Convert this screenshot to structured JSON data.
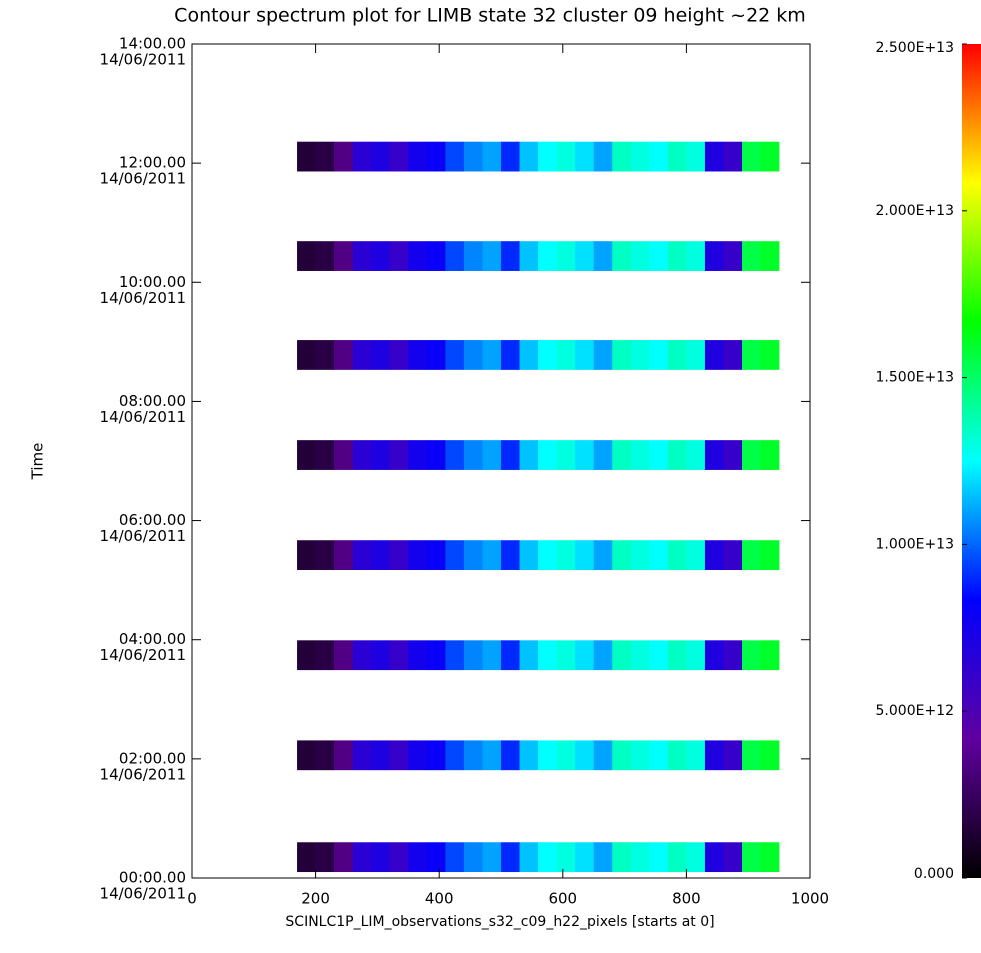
{
  "chart_data": {
    "type": "heatmap",
    "title": "Contour spectrum plot for LIMB state 32 cluster 09 height ~22 km",
    "xlabel": "SCINLC1P_LIM_observations_s32_c09_h22_pixels [starts at 0]",
    "ylabel": "Time",
    "xlim": [
      0,
      1000
    ],
    "xticks": [
      0,
      200,
      400,
      600,
      800,
      1000
    ],
    "ylim": [
      0,
      14
    ],
    "yticks": [
      {
        "value": 0,
        "label": [
          "00:00.00",
          "14/06/2011"
        ]
      },
      {
        "value": 2,
        "label": [
          "02:00.00",
          "14/06/2011"
        ]
      },
      {
        "value": 4,
        "label": [
          "04:00.00",
          "14/06/2011"
        ]
      },
      {
        "value": 6,
        "label": [
          "06:00.00",
          "14/06/2011"
        ]
      },
      {
        "value": 8,
        "label": [
          "08:00.00",
          "14/06/2011"
        ]
      },
      {
        "value": 10,
        "label": [
          "10:00.00",
          "14/06/2011"
        ]
      },
      {
        "value": 12,
        "label": [
          "12:00.00",
          "14/06/2011"
        ]
      },
      {
        "value": 14,
        "label": [
          "14:00.00",
          "14/06/2011"
        ]
      }
    ],
    "clim": [
      0,
      25000000000000.0
    ],
    "cticks": [
      {
        "value": 0,
        "label": "0.000"
      },
      {
        "value": 5000000000000.0,
        "label": "5.000E+12"
      },
      {
        "value": 10000000000000.0,
        "label": "1.000E+13"
      },
      {
        "value": 15000000000000.0,
        "label": "1.500E+13"
      },
      {
        "value": 20000000000000.0,
        "label": "2.000E+13"
      },
      {
        "value": 25000000000000.0,
        "label": "2.500E+13"
      }
    ],
    "colormap": [
      "#000000",
      "#6000a0",
      "#0000ff",
      "#00ffff",
      "#00ff00",
      "#ffff00",
      "#ff0000"
    ],
    "x_edges": [
      170,
      200,
      230,
      260,
      290,
      320,
      350,
      380,
      410,
      440,
      470,
      500,
      530,
      560,
      590,
      620,
      650,
      680,
      710,
      740,
      770,
      800,
      830,
      860,
      890,
      920,
      950
    ],
    "rows": [
      {
        "y_edges": [
          0.1,
          0.6
        ],
        "values": [
          1500000000000.0,
          1800000000000.0,
          3500000000000.0,
          6500000000000.0,
          7000000000000.0,
          6000000000000.0,
          7500000000000.0,
          8000000000000.0,
          9500000000000.0,
          10500000000000.0,
          11000000000000.0,
          9000000000000.0,
          11500000000000.0,
          12500000000000.0,
          13000000000000.0,
          12000000000000.0,
          11000000000000.0,
          13500000000000.0,
          13000000000000.0,
          12500000000000.0,
          13500000000000.0,
          13000000000000.0,
          7000000000000.0,
          6000000000000.0,
          15500000000000.0,
          16000000000000.0
        ]
      },
      {
        "y_edges": [
          1.81,
          2.31
        ],
        "values": [
          1500000000000.0,
          1800000000000.0,
          3500000000000.0,
          6500000000000.0,
          7000000000000.0,
          6000000000000.0,
          7500000000000.0,
          8000000000000.0,
          9500000000000.0,
          10500000000000.0,
          11000000000000.0,
          9000000000000.0,
          11500000000000.0,
          12500000000000.0,
          13000000000000.0,
          12000000000000.0,
          11000000000000.0,
          13500000000000.0,
          13000000000000.0,
          12500000000000.0,
          13500000000000.0,
          13000000000000.0,
          7000000000000.0,
          6000000000000.0,
          15500000000000.0,
          16000000000000.0
        ]
      },
      {
        "y_edges": [
          3.49,
          3.99
        ],
        "values": [
          1500000000000.0,
          1800000000000.0,
          3500000000000.0,
          6500000000000.0,
          7000000000000.0,
          6000000000000.0,
          7500000000000.0,
          8000000000000.0,
          9500000000000.0,
          10500000000000.0,
          11000000000000.0,
          9000000000000.0,
          11500000000000.0,
          12500000000000.0,
          13000000000000.0,
          12000000000000.0,
          11000000000000.0,
          13500000000000.0,
          13000000000000.0,
          12500000000000.0,
          13500000000000.0,
          13000000000000.0,
          7000000000000.0,
          6000000000000.0,
          15500000000000.0,
          16000000000000.0
        ]
      },
      {
        "y_edges": [
          5.17,
          5.67
        ],
        "values": [
          1500000000000.0,
          1800000000000.0,
          3500000000000.0,
          6500000000000.0,
          7000000000000.0,
          6000000000000.0,
          7500000000000.0,
          8000000000000.0,
          9500000000000.0,
          10500000000000.0,
          11000000000000.0,
          9000000000000.0,
          11500000000000.0,
          12500000000000.0,
          13000000000000.0,
          12000000000000.0,
          11000000000000.0,
          13500000000000.0,
          13000000000000.0,
          12500000000000.0,
          13500000000000.0,
          13000000000000.0,
          7000000000000.0,
          6000000000000.0,
          15500000000000.0,
          16000000000000.0
        ]
      },
      {
        "y_edges": [
          6.85,
          7.35
        ],
        "values": [
          1500000000000.0,
          1800000000000.0,
          3500000000000.0,
          6500000000000.0,
          7000000000000.0,
          6000000000000.0,
          7500000000000.0,
          8000000000000.0,
          9500000000000.0,
          10500000000000.0,
          11000000000000.0,
          9000000000000.0,
          11500000000000.0,
          12500000000000.0,
          13000000000000.0,
          12000000000000.0,
          11000000000000.0,
          13500000000000.0,
          13000000000000.0,
          12500000000000.0,
          13500000000000.0,
          13000000000000.0,
          7000000000000.0,
          6000000000000.0,
          15500000000000.0,
          16000000000000.0
        ]
      },
      {
        "y_edges": [
          8.53,
          9.03
        ],
        "values": [
          1500000000000.0,
          1800000000000.0,
          3500000000000.0,
          6500000000000.0,
          7000000000000.0,
          6000000000000.0,
          7500000000000.0,
          8000000000000.0,
          9500000000000.0,
          10500000000000.0,
          11000000000000.0,
          9000000000000.0,
          11500000000000.0,
          12500000000000.0,
          13000000000000.0,
          12000000000000.0,
          11000000000000.0,
          13500000000000.0,
          13000000000000.0,
          12500000000000.0,
          13500000000000.0,
          13000000000000.0,
          7000000000000.0,
          6000000000000.0,
          15500000000000.0,
          16000000000000.0
        ]
      },
      {
        "y_edges": [
          10.19,
          10.69
        ],
        "values": [
          1500000000000.0,
          1800000000000.0,
          3500000000000.0,
          6500000000000.0,
          7000000000000.0,
          6000000000000.0,
          7500000000000.0,
          8000000000000.0,
          9500000000000.0,
          10500000000000.0,
          11000000000000.0,
          9000000000000.0,
          11500000000000.0,
          12500000000000.0,
          13000000000000.0,
          12000000000000.0,
          11000000000000.0,
          13500000000000.0,
          13000000000000.0,
          12500000000000.0,
          13500000000000.0,
          13000000000000.0,
          7000000000000.0,
          6000000000000.0,
          15500000000000.0,
          16000000000000.0
        ]
      },
      {
        "y_edges": [
          11.86,
          12.36
        ],
        "values": [
          1500000000000.0,
          1800000000000.0,
          3500000000000.0,
          6500000000000.0,
          7000000000000.0,
          6000000000000.0,
          7500000000000.0,
          8000000000000.0,
          9500000000000.0,
          10500000000000.0,
          11000000000000.0,
          9000000000000.0,
          11500000000000.0,
          12500000000000.0,
          13000000000000.0,
          12000000000000.0,
          11000000000000.0,
          13500000000000.0,
          13000000000000.0,
          12500000000000.0,
          13500000000000.0,
          13000000000000.0,
          7000000000000.0,
          6000000000000.0,
          15500000000000.0,
          16000000000000.0
        ]
      }
    ]
  }
}
